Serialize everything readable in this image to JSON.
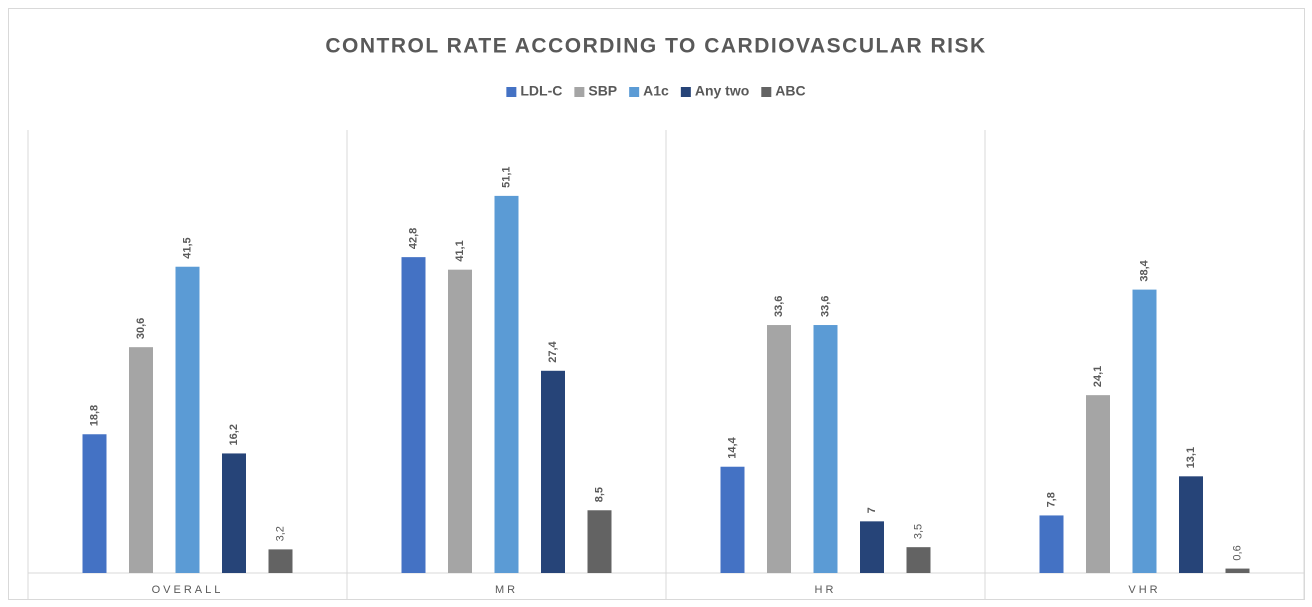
{
  "chart_data": {
    "type": "bar",
    "title": "CONTROL RATE ACCORDING TO CARDIOVASCULAR RISK",
    "categories": [
      "OVERALL",
      "MR",
      "HR",
      "VHR"
    ],
    "series": [
      {
        "name": "LDL-C",
        "color": "#4472c4",
        "values": [
          18.8,
          42.8,
          14.4,
          7.8
        ],
        "value_labels": [
          "18,8",
          "42,8",
          "14,4",
          "7,8"
        ]
      },
      {
        "name": "SBP",
        "color": "#a5a5a5",
        "values": [
          30.6,
          41.1,
          33.6,
          24.1
        ],
        "value_labels": [
          "30,6",
          "41,1",
          "33,6",
          "24,1"
        ]
      },
      {
        "name": "A1c",
        "color": "#5b9bd5",
        "values": [
          41.5,
          51.1,
          33.6,
          38.4
        ],
        "value_labels": [
          "41,5",
          "51,1",
          "33,6",
          "38,4"
        ]
      },
      {
        "name": "Any two",
        "color": "#264478",
        "values": [
          16.2,
          27.4,
          7,
          13.1
        ],
        "value_labels": [
          "16,2",
          "27,4",
          "7",
          "13,1"
        ]
      },
      {
        "name": "ABC",
        "color": "#636363",
        "values": [
          3.2,
          8.5,
          3.5,
          0.6
        ],
        "value_labels": [
          "3,2",
          "8,5",
          "3,5",
          "0,6"
        ]
      }
    ],
    "legend": "top"
  }
}
